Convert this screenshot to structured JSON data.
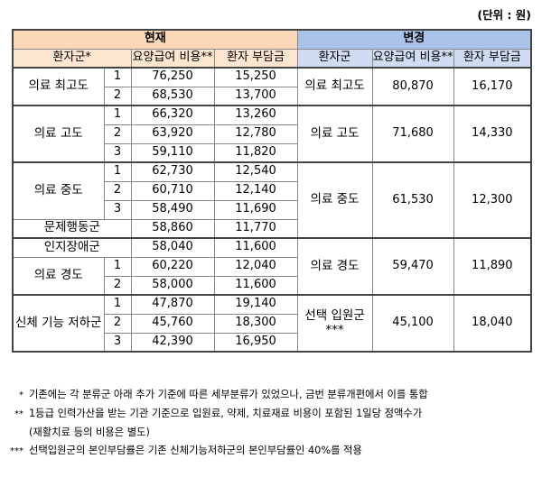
{
  "unit_label": "(단위 : 원)",
  "header": {
    "current": "현재",
    "changed": "변경",
    "patient_group_star": "환자군*",
    "patient_group": "환자군",
    "care_cost": "요양급여 비용**",
    "copay": "환자 부담금"
  },
  "groups": [
    {
      "name_current": "의료 최고도",
      "rows": [
        {
          "grade": "1",
          "cost": "76,250",
          "copay": "15,250"
        },
        {
          "grade": "2",
          "cost": "68,530",
          "copay": "13,700"
        }
      ],
      "name_new": "의료 최고도",
      "new_cost": "80,870",
      "new_copay": "16,170"
    },
    {
      "name_current": "의료 고도",
      "rows": [
        {
          "grade": "1",
          "cost": "66,320",
          "copay": "13,260"
        },
        {
          "grade": "2",
          "cost": "63,920",
          "copay": "12,780"
        },
        {
          "grade": "3",
          "cost": "59,110",
          "copay": "11,820"
        }
      ],
      "name_new": "의료 고도",
      "new_cost": "71,680",
      "new_copay": "14,330"
    },
    {
      "name_current": "의료 중도",
      "rows": [
        {
          "grade": "1",
          "cost": "62,730",
          "copay": "12,540"
        },
        {
          "grade": "2",
          "cost": "60,710",
          "copay": "12,140"
        },
        {
          "grade": "3",
          "cost": "58,490",
          "copay": "11,690"
        }
      ],
      "extra": {
        "name": "문제행동군",
        "cost": "58,860",
        "copay": "11,770"
      },
      "name_new": "의료 중도",
      "new_cost": "61,530",
      "new_copay": "12,300"
    },
    {
      "pre": {
        "name": "인지장애군",
        "cost": "58,040",
        "copay": "11,600"
      },
      "name_current": "의료 경도",
      "rows": [
        {
          "grade": "1",
          "cost": "60,220",
          "copay": "12,040"
        },
        {
          "grade": "2",
          "cost": "58,000",
          "copay": "11,600"
        }
      ],
      "name_new": "의료 경도",
      "new_cost": "59,470",
      "new_copay": "11,890"
    },
    {
      "name_current": "신체 기능 저하군",
      "rows": [
        {
          "grade": "1",
          "cost": "47,870",
          "copay": "19,140"
        },
        {
          "grade": "2",
          "cost": "45,760",
          "copay": "18,300"
        },
        {
          "grade": "3",
          "cost": "42,390",
          "copay": "16,950"
        }
      ],
      "name_new": "선택 입원군***",
      "new_cost": "45,100",
      "new_copay": "18,040"
    }
  ],
  "notes": {
    "n1_mark": "*",
    "n1": "기존에는 각 분류군 아래 추가 기준에 따른 세부분류가 있었으나, 금번 분류개편에서 이를 통합",
    "n2_mark": "**",
    "n2": "1등급 인력가산을 받는 기관 기준으로 입원료, 약제, 치료재료 비용이 포함된 1일당 정액수가",
    "n2b": "(재활치료 등의 비용은 별도)",
    "n3_mark": "***",
    "n3": "선택입원군의 본인부담률은 기존 신체기능저하군의 본인부담률인 40%를 적용"
  }
}
